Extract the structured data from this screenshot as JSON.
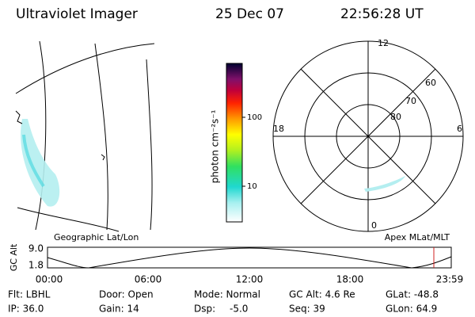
{
  "header": {
    "instrument": "Ultraviolet Imager",
    "date": "25 Dec 07",
    "time": "22:56:28 UT"
  },
  "colorbar": {
    "label": "photon cm⁻²s⁻¹",
    "ticks": [
      "100",
      "10"
    ]
  },
  "polar_plot": {
    "mlt_labels": [
      "12",
      "18",
      "6",
      "0"
    ],
    "mlat_labels": [
      "60",
      "70",
      "80"
    ]
  },
  "altitude_plot": {
    "left_title": "Geographic Lat/Lon",
    "right_title": "Apex MLat/MLT",
    "axis_label": "GC Alt",
    "y_labels": [
      "9.0",
      "1.8"
    ],
    "time_labels": [
      "00:00",
      "06:00",
      "12:00",
      "18:00",
      "23:59"
    ]
  },
  "footer": {
    "flt": "Flt: LBHL",
    "ip": "IP: 36.0",
    "door": "Door: Open",
    "gain": "Gain: 14",
    "mode": "Mode: Normal",
    "dsp_label": "Dsp:",
    "dsp_value": "-5.0",
    "gc_alt": "GC Alt: 4.6 Re",
    "seq": "Seq: 39",
    "glat": "GLat: -48.8",
    "glon": "GLon: 64.9"
  }
}
